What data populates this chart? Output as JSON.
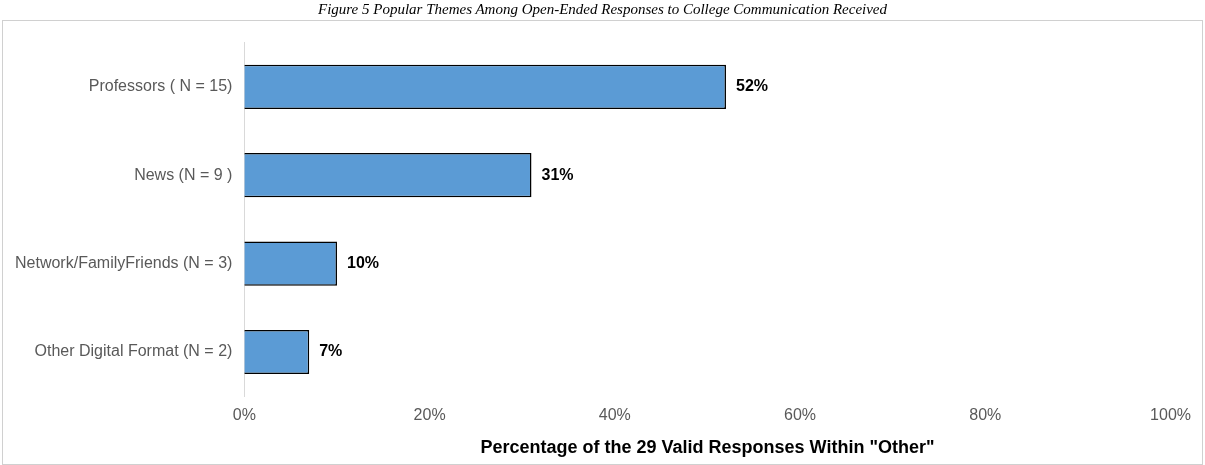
{
  "chart_data": {
    "type": "bar",
    "orientation": "horizontal",
    "title": "Figure 5 Popular Themes Among Open-Ended Responses to College Communication Received",
    "xlabel": "Percentage of the 29 Valid Responses Within \"Other\"",
    "categories": [
      "Professors ( N = 15)",
      "News (N = 9 )",
      "Network/FamilyFriends (N = 3)",
      "Other Digital Format (N = 2)"
    ],
    "values": [
      52,
      31,
      10,
      7
    ],
    "value_labels": [
      "52%",
      "31%",
      "10%",
      "7%"
    ],
    "color": "#5b9bd5",
    "xlim": [
      0,
      100
    ],
    "xticks": [
      {
        "value": 0,
        "label": "0%"
      },
      {
        "value": 20,
        "label": "20%"
      },
      {
        "value": 40,
        "label": "40%"
      },
      {
        "value": 60,
        "label": "60%"
      },
      {
        "value": 80,
        "label": "80%"
      },
      {
        "value": 100,
        "label": "100%"
      }
    ],
    "grid": false,
    "legend": false
  }
}
